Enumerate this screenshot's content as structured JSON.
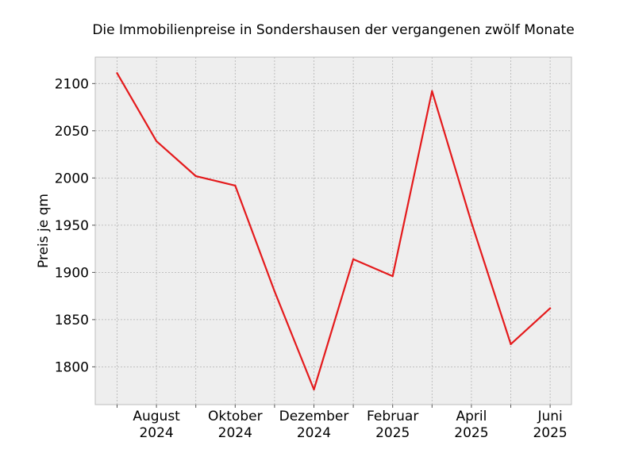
{
  "chart_data": {
    "type": "line",
    "title": "Die Immobilienpreise in Sondershausen der vergangenen zwölf Monate",
    "xlabel": "",
    "ylabel": "Preis je qm",
    "x": [
      "2024-07",
      "2024-08",
      "2024-09",
      "2024-10",
      "2024-11",
      "2024-12",
      "2025-01",
      "2025-02",
      "2025-03",
      "2025-04",
      "2025-05",
      "2025-06"
    ],
    "series": [
      {
        "values": [
          2111,
          2039,
          2002,
          1992,
          1880,
          1776,
          1914,
          1896,
          2092,
          1953,
          1824,
          1862
        ],
        "color": "#e41a1c"
      }
    ],
    "x_ticks": [
      {
        "month": "2024-08",
        "label_line1": "August",
        "label_line2": "2024"
      },
      {
        "month": "2024-10",
        "label_line1": "Oktober",
        "label_line2": "2024"
      },
      {
        "month": "2024-12",
        "label_line1": "Dezember",
        "label_line2": "2024"
      },
      {
        "month": "2025-02",
        "label_line1": "Februar",
        "label_line2": "2025"
      },
      {
        "month": "2025-04",
        "label_line1": "April",
        "label_line2": "2025"
      },
      {
        "month": "2025-06",
        "label_line1": "Juni",
        "label_line2": "2025"
      }
    ],
    "y_ticks": [
      "1800",
      "1850",
      "1900",
      "1950",
      "2000",
      "2050",
      "2100"
    ],
    "ylim": [
      1760,
      2128
    ],
    "grid": true,
    "background": "#eeeeee"
  }
}
